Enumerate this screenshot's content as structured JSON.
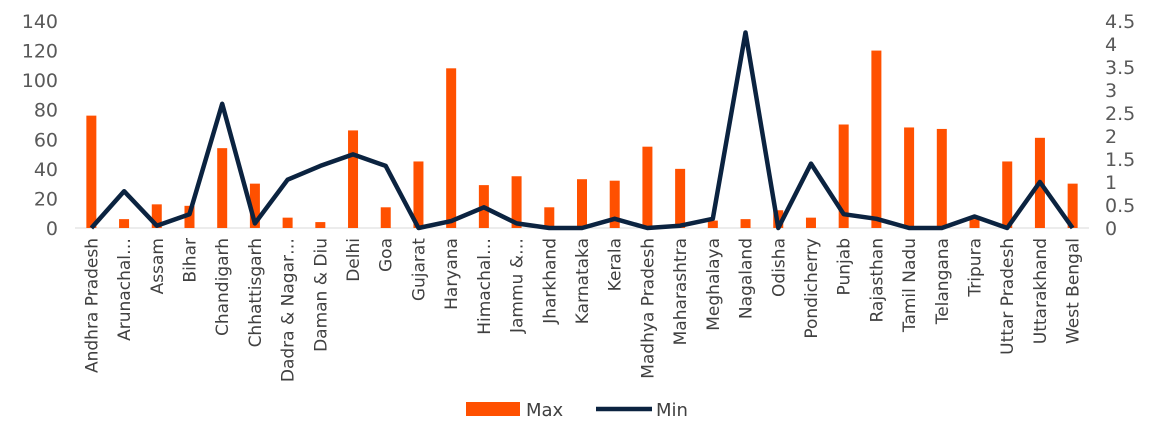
{
  "chart_data": {
    "type": "bar+line",
    "title": "",
    "categories": [
      "Andhra Pradesh",
      "Arunachal…",
      "Assam",
      "Bihar",
      "Chandigarh",
      "Chhattisgarh",
      "Dadra & Nagar…",
      "Daman & Diu",
      "Delhi",
      "Goa",
      "Gujarat",
      "Haryana",
      "Himachal…",
      "Jammu &…",
      "Jharkhand",
      "Karnataka",
      "Kerala",
      "Madhya Pradesh",
      "Maharashtra",
      "Meghalaya",
      "Nagaland",
      "Odisha",
      "Pondicherry",
      "Punjab",
      "Rajasthan",
      "Tamil Nadu",
      "Telangana",
      "Tripura",
      "Uttar Pradesh",
      "Uttarakhand",
      "West Bengal"
    ],
    "series": [
      {
        "name": "Max",
        "type": "bar",
        "axis": "left",
        "color": "#FF5000",
        "values": [
          76,
          6,
          16,
          15,
          54,
          30,
          7,
          4,
          66,
          14,
          45,
          108,
          29,
          35,
          14,
          33,
          32,
          55,
          40,
          5,
          6,
          12,
          7,
          70,
          120,
          68,
          67,
          6,
          45,
          61,
          30
        ]
      },
      {
        "name": "Min",
        "type": "line",
        "axis": "right",
        "color": "#0B2340",
        "values": [
          0,
          0.8,
          0.05,
          0.3,
          2.7,
          0.1,
          1.05,
          1.35,
          1.6,
          1.35,
          0,
          0.15,
          0.45,
          0.1,
          0,
          0,
          0.2,
          0,
          0.05,
          0.2,
          4.25,
          0,
          1.4,
          0.3,
          0.2,
          0,
          0,
          0.25,
          0,
          1,
          0
        ]
      }
    ],
    "y_left": {
      "min": 0,
      "max": 140,
      "ticks": [
        "0",
        "20",
        "40",
        "60",
        "80",
        "100",
        "120",
        "140"
      ]
    },
    "y_right": {
      "min": 0,
      "max": 4.5,
      "ticks": [
        "0",
        "0.5",
        "1",
        "1.5",
        "2",
        "2.5",
        "3",
        "3.5",
        "4",
        "4.5"
      ]
    },
    "grid": false,
    "legend": {
      "position": "bottom",
      "items": [
        "Max",
        "Min"
      ]
    }
  }
}
